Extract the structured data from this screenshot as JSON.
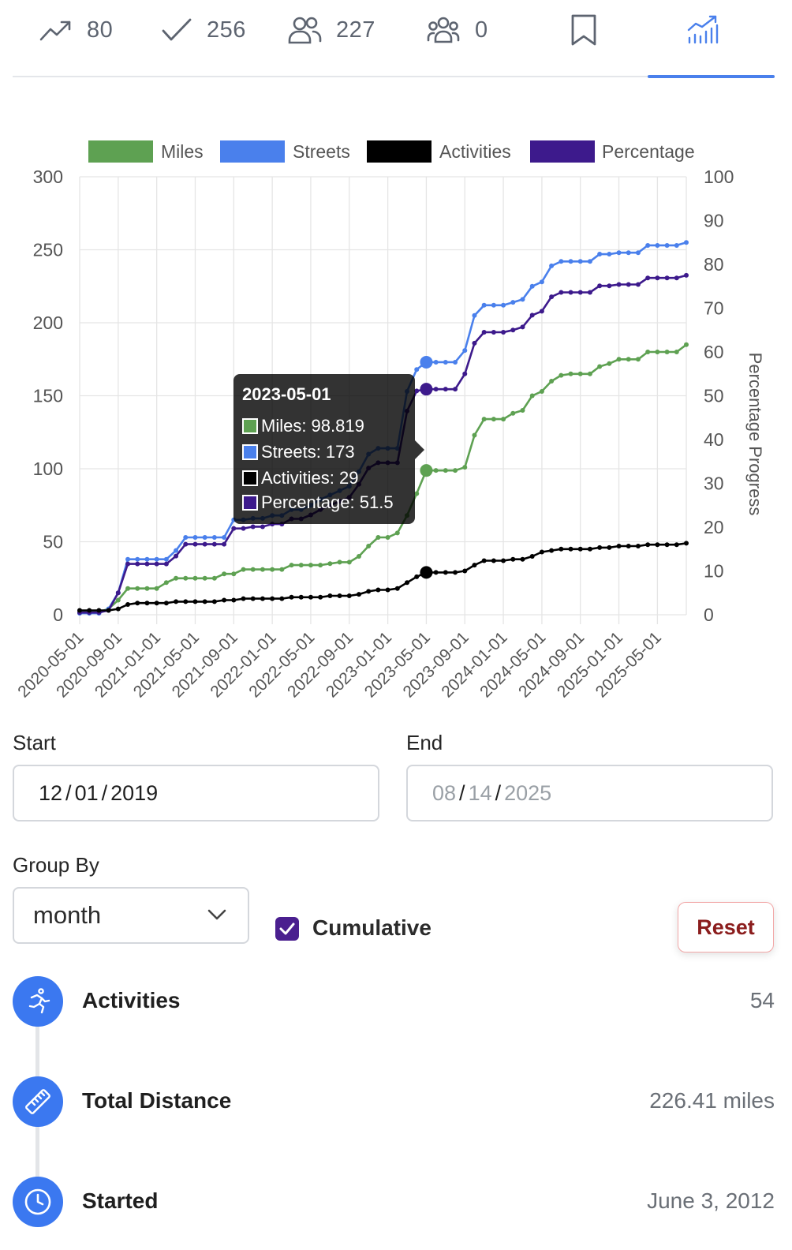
{
  "tabs": {
    "trending": "80",
    "completed": "256",
    "friends": "227",
    "groups": "0"
  },
  "chart_data": {
    "type": "line",
    "title": "",
    "legend": [
      "Miles",
      "Streets",
      "Activities",
      "Percentage"
    ],
    "legend_position": "top",
    "colors": [
      "#5ea152",
      "#4a80ec",
      "#000000",
      "#3d1a8c"
    ],
    "x_tick_labels": [
      "2020-05-01",
      "2020-09-01",
      "2021-01-01",
      "2021-05-01",
      "2021-09-01",
      "2022-01-01",
      "2022-05-01",
      "2022-09-01",
      "2023-01-01",
      "2023-05-01",
      "2023-09-01",
      "2024-01-01",
      "2024-05-01",
      "2024-09-01",
      "2025-01-01",
      "2025-05-01"
    ],
    "y_left": {
      "min": 0,
      "max": 300,
      "ticks": [
        0,
        50,
        100,
        150,
        200,
        250,
        300
      ]
    },
    "y_right": {
      "label": "Percentage Progress",
      "min": 0,
      "max": 100,
      "ticks": [
        0,
        10,
        20,
        30,
        40,
        50,
        60,
        70,
        80,
        90,
        100
      ]
    },
    "grid": true,
    "x": [
      "2020-05",
      "2020-06",
      "2020-07",
      "2020-08",
      "2020-09",
      "2020-10",
      "2020-11",
      "2020-12",
      "2021-01",
      "2021-02",
      "2021-03",
      "2021-04",
      "2021-05",
      "2021-06",
      "2021-07",
      "2021-08",
      "2021-09",
      "2021-10",
      "2021-11",
      "2021-12",
      "2022-01",
      "2022-02",
      "2022-03",
      "2022-04",
      "2022-05",
      "2022-06",
      "2022-07",
      "2022-08",
      "2022-09",
      "2022-10",
      "2022-11",
      "2022-12",
      "2023-01",
      "2023-02",
      "2023-03",
      "2023-04",
      "2023-05",
      "2023-06",
      "2023-07",
      "2023-08",
      "2023-09",
      "2023-10",
      "2023-11",
      "2023-12",
      "2024-01",
      "2024-02",
      "2024-03",
      "2024-04",
      "2024-05",
      "2024-06",
      "2024-07",
      "2024-08",
      "2024-09",
      "2024-10",
      "2024-11",
      "2024-12",
      "2025-01",
      "2025-02",
      "2025-03",
      "2025-04",
      "2025-05",
      "2025-06",
      "2025-07",
      "2025-08"
    ],
    "series": [
      {
        "name": "Miles",
        "axis": "left",
        "values": [
          2,
          2,
          2,
          4,
          10,
          18,
          18,
          18,
          18,
          22,
          25,
          25,
          25,
          25,
          25,
          28,
          28,
          31,
          31,
          31,
          31,
          31,
          34,
          34,
          34,
          34,
          35,
          36,
          36,
          40,
          47,
          53,
          53,
          56,
          68,
          83,
          98.819,
          98.819,
          98.819,
          98.819,
          101,
          123,
          134,
          134,
          134,
          138,
          140,
          150,
          153,
          160,
          164,
          165,
          165,
          165,
          170,
          172,
          175,
          175,
          175,
          180,
          180,
          180,
          180,
          185
        ]
      },
      {
        "name": "Streets",
        "axis": "left",
        "values": [
          1,
          1,
          1,
          4,
          15,
          38,
          38,
          38,
          38,
          38,
          44,
          53,
          53,
          53,
          53,
          53,
          65,
          65,
          66,
          66,
          68,
          68,
          72,
          72,
          75,
          79,
          82,
          85,
          88,
          98,
          110,
          114,
          114,
          114,
          153,
          168,
          173,
          173,
          173,
          173,
          181,
          205,
          212,
          212,
          212,
          214,
          216,
          225,
          228,
          239,
          242,
          242,
          242,
          242,
          247,
          247,
          248,
          248,
          248,
          253,
          253,
          253,
          253,
          255
        ]
      },
      {
        "name": "Activities",
        "axis": "left",
        "values": [
          3,
          3,
          3,
          3,
          4,
          7,
          8,
          8,
          8,
          8,
          9,
          9,
          9,
          9,
          9,
          10,
          10,
          11,
          11,
          11,
          11,
          11,
          12,
          12,
          12,
          12,
          13,
          13,
          13,
          14,
          16,
          17,
          17,
          18,
          22,
          26,
          29,
          29,
          29,
          29,
          30,
          34,
          37,
          37,
          37,
          38,
          38,
          40,
          43,
          44,
          45,
          45,
          45,
          45,
          46,
          46,
          47,
          47,
          47,
          48,
          48,
          48,
          48,
          49
        ]
      },
      {
        "name": "Percentage",
        "axis": "right",
        "values": [
          0.5,
          0.5,
          0.5,
          1,
          5,
          11.6,
          11.6,
          11.6,
          11.6,
          11.6,
          13.4,
          16.1,
          16.1,
          16.1,
          16.1,
          16.1,
          19.7,
          19.7,
          20.1,
          20.1,
          20.7,
          20.7,
          21.9,
          21.9,
          22.8,
          24,
          25,
          25.9,
          26.8,
          29.8,
          33.5,
          34.7,
          34.7,
          34.7,
          46.5,
          51.1,
          51.5,
          51.5,
          51.5,
          51.5,
          55,
          62,
          64.5,
          64.5,
          64.5,
          65,
          65.7,
          68.4,
          69.3,
          72.6,
          73.6,
          73.6,
          73.6,
          73.6,
          75.1,
          75.1,
          75.4,
          75.4,
          75.4,
          76.9,
          76.9,
          76.9,
          76.9,
          77.5
        ]
      }
    ],
    "tooltip": {
      "title": "2023-05-01",
      "rows": [
        "Miles: 98.819",
        "Streets: 173",
        "Activities: 29",
        "Percentage: 51.5"
      ],
      "x": "2023-05"
    }
  },
  "form": {
    "start_label": "Start",
    "end_label": "End",
    "start_mm": "12",
    "start_dd": "01",
    "start_yyyy": "2019",
    "end_mm": "08",
    "end_dd": "14",
    "end_yyyy": "2025",
    "date_sep": "/",
    "group_by_label": "Group By",
    "group_by_value": "month",
    "cumulative_label": "Cumulative",
    "cumulative_checked": true,
    "reset_label": "Reset"
  },
  "stats": [
    {
      "label": "Activities",
      "value": "54",
      "icon": "runner-icon"
    },
    {
      "label": "Total Distance",
      "value": "226.41 miles",
      "icon": "ruler-icon"
    },
    {
      "label": "Started",
      "value": "June 3, 2012",
      "icon": "clock-icon"
    }
  ]
}
